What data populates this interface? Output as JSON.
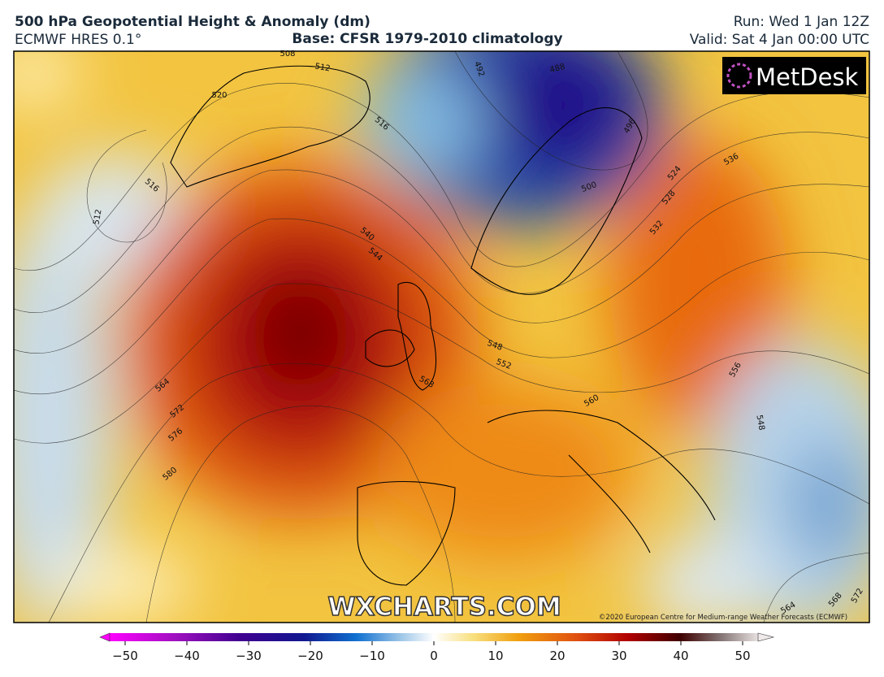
{
  "header": {
    "title": "500 hPa Geopotential Height & Anomaly (dm)",
    "model": "ECMWF HRES 0.1°",
    "base": "Base: CFSR 1979-2010 climatology",
    "run": "Run: Wed 1 Jan 12Z",
    "valid": "Valid: Sat 4 Jan 00:00 UTC"
  },
  "logo": "MetDesk",
  "watermark": "WXCHARTS.COM",
  "copyright": "©2020 European Centre for Medium-range Weather Forecasts (ECMWF)",
  "contour_labels": [
    508,
    512,
    520,
    492,
    488,
    516,
    516,
    512,
    540,
    544,
    500,
    496,
    524,
    528,
    532,
    536,
    548,
    552,
    568,
    560,
    556,
    548,
    564,
    572,
    576,
    580,
    564,
    568,
    572
  ],
  "colorbar": {
    "lim": [
      -52.5,
      52.5
    ],
    "ticks": [
      {
        "value": -50,
        "label": "−50"
      },
      {
        "value": -40,
        "label": "−40"
      },
      {
        "value": -30,
        "label": "−30"
      },
      {
        "value": -20,
        "label": "−20"
      },
      {
        "value": -10,
        "label": "−10"
      },
      0,
      10,
      20,
      30,
      40,
      50
    ]
  }
}
